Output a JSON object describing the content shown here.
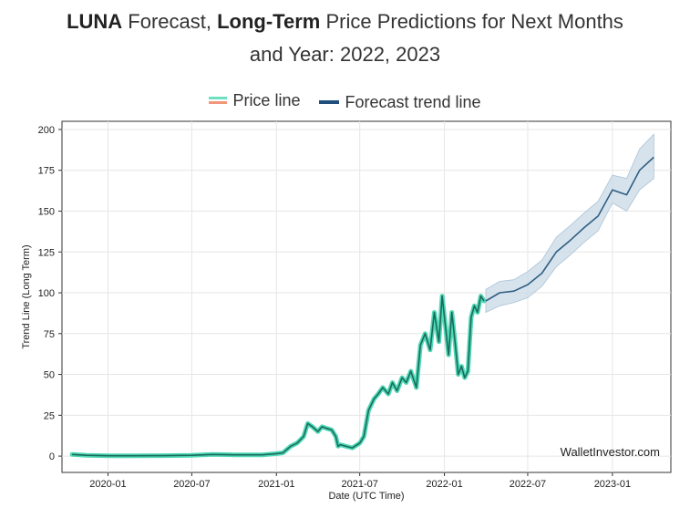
{
  "header": {
    "title_bold1": "LUNA",
    "title_part1": " Forecast, ",
    "title_bold2": "Long-Term",
    "title_part2": " Price Predictions for Next Months",
    "title_line2": "and Year: 2022, 2023"
  },
  "legend": {
    "price_label": "Price line",
    "forecast_label": "Forecast trend line"
  },
  "watermark": "WalletInvestor.com",
  "colors": {
    "price_line": "#1a6b5e",
    "price_glow": "#4fd8b4",
    "forecast_line": "#2f5f84",
    "forecast_band": "#c9d9e6"
  },
  "chart_data": {
    "type": "line",
    "xlabel": "Date (UTC Time)",
    "ylabel": "Trend Line (Long Term)",
    "ylim": [
      -10,
      205
    ],
    "yticks": [
      0,
      25,
      50,
      75,
      100,
      125,
      150,
      175,
      200
    ],
    "xticks": [
      "2020-01",
      "2020-07",
      "2021-01",
      "2021-07",
      "2022-01",
      "2022-07",
      "2023-01"
    ],
    "xlim": [
      "2019-09-23",
      "2023-05-08"
    ],
    "grid": true,
    "series": [
      {
        "name": "Price line",
        "x": [
          "2019-10-15",
          "2019-11-15",
          "2020-01-01",
          "2020-03-01",
          "2020-05-01",
          "2020-07-01",
          "2020-08-15",
          "2020-10-01",
          "2020-12-01",
          "2021-01-01",
          "2021-01-15",
          "2021-02-01",
          "2021-02-15",
          "2021-03-01",
          "2021-03-10",
          "2021-03-20",
          "2021-04-01",
          "2021-04-10",
          "2021-04-20",
          "2021-05-01",
          "2021-05-10",
          "2021-05-15",
          "2021-05-20",
          "2021-06-01",
          "2021-06-15",
          "2021-07-01",
          "2021-07-10",
          "2021-07-20",
          "2021-08-01",
          "2021-08-10",
          "2021-08-20",
          "2021-09-01",
          "2021-09-10",
          "2021-09-20",
          "2021-10-01",
          "2021-10-10",
          "2021-10-20",
          "2021-11-01",
          "2021-11-10",
          "2021-11-20",
          "2021-12-01",
          "2021-12-10",
          "2021-12-20",
          "2021-12-27",
          "2022-01-03",
          "2022-01-10",
          "2022-01-17",
          "2022-01-24",
          "2022-01-31",
          "2022-02-07",
          "2022-02-14",
          "2022-02-21",
          "2022-02-28",
          "2022-03-07",
          "2022-03-14",
          "2022-03-21",
          "2022-03-28"
        ],
        "values": [
          1,
          0.5,
          0.2,
          0.2,
          0.3,
          0.5,
          1,
          0.8,
          0.8,
          1.5,
          2,
          6,
          8,
          12,
          20,
          18,
          15,
          18,
          17,
          16,
          12,
          6,
          7,
          6,
          5,
          8,
          12,
          28,
          35,
          38,
          42,
          38,
          45,
          40,
          48,
          45,
          52,
          42,
          68,
          75,
          65,
          88,
          70,
          98,
          80,
          62,
          88,
          70,
          50,
          55,
          48,
          52,
          85,
          92,
          88,
          98,
          95
        ]
      },
      {
        "name": "Forecast trend line",
        "x": [
          "2022-04-01",
          "2022-05-01",
          "2022-06-01",
          "2022-07-01",
          "2022-08-01",
          "2022-09-01",
          "2022-10-01",
          "2022-11-01",
          "2022-12-01",
          "2023-01-01",
          "2023-02-01",
          "2023-03-01",
          "2023-04-01"
        ],
        "values": [
          95,
          100,
          101,
          105,
          112,
          125,
          132,
          140,
          147,
          163,
          160,
          175,
          183
        ],
        "lower": [
          88,
          92,
          94,
          97,
          104,
          116,
          123,
          131,
          138,
          155,
          150,
          163,
          170
        ],
        "upper": [
          102,
          107,
          108,
          113,
          120,
          134,
          141,
          149,
          156,
          172,
          170,
          188,
          197
        ]
      }
    ]
  }
}
